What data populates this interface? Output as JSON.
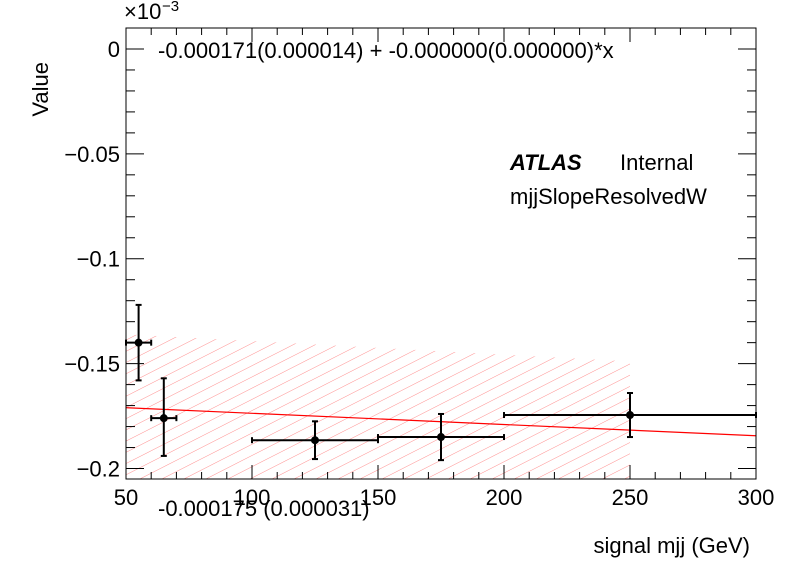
{
  "chart_data": {
    "type": "scatter",
    "xlabel": "signal mjj (GeV)",
    "ylabel": "Value",
    "y_exponent": "×10",
    "y_exponent_power": "−3",
    "xlim": [
      50,
      300
    ],
    "ylim": [
      -0.205,
      0.01
    ],
    "x_ticks": [
      50,
      100,
      150,
      200,
      250,
      300
    ],
    "x_tick_labels": [
      "50",
      "100",
      "150",
      "200",
      "250",
      "300"
    ],
    "y_ticks": [
      0,
      -0.05,
      -0.1,
      -0.15,
      -0.2
    ],
    "y_tick_labels": [
      "0",
      "−0.05",
      "−0.1",
      "−0.15",
      "−0.2"
    ],
    "points": [
      {
        "x": 55,
        "xlo": 50,
        "xhi": 60,
        "y": -0.14,
        "ylo": -0.158,
        "yhi": -0.122
      },
      {
        "x": 65,
        "xlo": 60,
        "xhi": 70,
        "y": -0.176,
        "ylo": -0.194,
        "yhi": -0.157
      },
      {
        "x": 125,
        "xlo": 100,
        "xhi": 150,
        "y": -0.1865,
        "ylo": -0.1955,
        "yhi": -0.1775
      },
      {
        "x": 175,
        "xlo": 150,
        "xhi": 200,
        "y": -0.185,
        "ylo": -0.196,
        "yhi": -0.174
      },
      {
        "x": 250,
        "xlo": 200,
        "xhi": 300,
        "y": -0.1745,
        "ylo": -0.185,
        "yhi": -0.164
      }
    ],
    "fit": {
      "intercept": -0.171,
      "slope": -5.35e-05,
      "x_from": 50,
      "x_to": 300,
      "color": "#ff0000"
    },
    "band": {
      "x_from": 50,
      "x_to": 250,
      "top_at_from": -0.136,
      "top_at_to": -0.149,
      "bottom_at_from": -0.206,
      "bottom_at_to": -0.206,
      "color": "#ff0000"
    },
    "fit_label": "-0.000171(0.000014) + -0.000000(0.000000)*x",
    "band_label": "-0.000175 (0.000031)",
    "atlas_label": "ATLAS",
    "atlas_sub": "Internal",
    "variable_label": "mjjSlopeResolvedW"
  }
}
